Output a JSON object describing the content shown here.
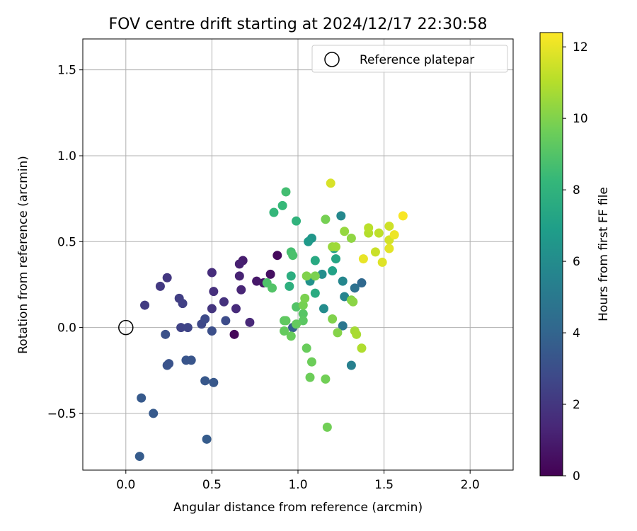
{
  "chart_data": {
    "type": "scatter",
    "title": "FOV centre drift starting at 2024/12/17 22:30:58",
    "xlabel": "Angular distance from reference (arcmin)",
    "ylabel": "Rotation from reference (arcmin)",
    "xlim": [
      -0.25,
      2.25
    ],
    "ylim": [
      -0.83,
      1.68
    ],
    "xticks": [
      0.0,
      0.5,
      1.0,
      1.5,
      2.0
    ],
    "xtick_labels": [
      "0.0",
      "0.5",
      "1.0",
      "1.5",
      "2.0"
    ],
    "yticks": [
      -0.5,
      0.0,
      0.5,
      1.0,
      1.5
    ],
    "ytick_labels": [
      "−0.5",
      "0.0",
      "0.5",
      "1.0",
      "1.5"
    ],
    "grid": true,
    "legend": {
      "position": "upper right",
      "entries": [
        {
          "label": "Reference platepar",
          "marker": "open-circle",
          "x": 0.0,
          "y": 0.0
        }
      ]
    },
    "colorbar": {
      "label": "Hours from first FF file",
      "colormap": "viridis",
      "range": [
        0,
        12.4
      ],
      "ticks": [
        0,
        2,
        4,
        6,
        8,
        10,
        12
      ],
      "tick_labels": [
        "0",
        "2",
        "4",
        "6",
        "8",
        "10",
        "12"
      ]
    },
    "colormap_stops": [
      "#440154",
      "#482878",
      "#3e4989",
      "#31688e",
      "#26828e",
      "#1f9e89",
      "#35b779",
      "#6ece58",
      "#b5de2b",
      "#fde725"
    ],
    "points": [
      {
        "x": 0.97,
        "y": 0.0,
        "c": 0.1
      },
      {
        "x": 0.63,
        "y": -0.04,
        "c": 0.2
      },
      {
        "x": 0.88,
        "y": 0.42,
        "c": 0.3
      },
      {
        "x": 0.84,
        "y": 0.31,
        "c": 0.5
      },
      {
        "x": 0.8,
        "y": 0.26,
        "c": 0.7
      },
      {
        "x": 0.76,
        "y": 0.27,
        "c": 0.8
      },
      {
        "x": 0.68,
        "y": 0.39,
        "c": 1.0
      },
      {
        "x": 0.66,
        "y": 0.37,
        "c": 1.1
      },
      {
        "x": 0.66,
        "y": 0.3,
        "c": 1.2
      },
      {
        "x": 0.67,
        "y": 0.22,
        "c": 1.3
      },
      {
        "x": 0.72,
        "y": 0.03,
        "c": 1.4
      },
      {
        "x": 0.64,
        "y": 0.11,
        "c": 1.5
      },
      {
        "x": 0.5,
        "y": 0.32,
        "c": 1.6
      },
      {
        "x": 0.51,
        "y": 0.21,
        "c": 1.7
      },
      {
        "x": 0.57,
        "y": 0.15,
        "c": 1.8
      },
      {
        "x": 0.5,
        "y": 0.11,
        "c": 1.9
      },
      {
        "x": 0.24,
        "y": 0.29,
        "c": 2.0
      },
      {
        "x": 0.2,
        "y": 0.24,
        "c": 2.1
      },
      {
        "x": 0.11,
        "y": 0.13,
        "c": 2.2
      },
      {
        "x": 0.31,
        "y": 0.17,
        "c": 2.3
      },
      {
        "x": 0.33,
        "y": 0.14,
        "c": 2.4
      },
      {
        "x": 0.32,
        "y": 0.0,
        "c": 2.5
      },
      {
        "x": 0.36,
        "y": 0.0,
        "c": 2.6
      },
      {
        "x": 0.44,
        "y": 0.02,
        "c": 2.7
      },
      {
        "x": 0.46,
        "y": 0.05,
        "c": 2.8
      },
      {
        "x": 0.58,
        "y": 0.04,
        "c": 2.9
      },
      {
        "x": 0.5,
        "y": -0.02,
        "c": 3.0
      },
      {
        "x": 0.23,
        "y": -0.04,
        "c": 3.1
      },
      {
        "x": 0.24,
        "y": -0.22,
        "c": 3.2
      },
      {
        "x": 0.25,
        "y": -0.21,
        "c": 3.2
      },
      {
        "x": 0.35,
        "y": -0.19,
        "c": 3.3
      },
      {
        "x": 0.38,
        "y": -0.19,
        "c": 3.3
      },
      {
        "x": 0.46,
        "y": -0.31,
        "c": 3.4
      },
      {
        "x": 0.51,
        "y": -0.32,
        "c": 3.4
      },
      {
        "x": 0.09,
        "y": -0.41,
        "c": 3.5
      },
      {
        "x": 0.16,
        "y": -0.5,
        "c": 3.5
      },
      {
        "x": 0.08,
        "y": -0.75,
        "c": 3.6
      },
      {
        "x": 0.47,
        "y": -0.65,
        "c": 3.6
      },
      {
        "x": 0.97,
        "y": 0.0,
        "c": 3.8
      },
      {
        "x": 1.37,
        "y": 0.26,
        "c": 4.2
      },
      {
        "x": 1.33,
        "y": 0.23,
        "c": 4.6
      },
      {
        "x": 1.26,
        "y": 0.01,
        "c": 4.9
      },
      {
        "x": 1.31,
        "y": -0.22,
        "c": 5.4
      },
      {
        "x": 1.27,
        "y": 0.18,
        "c": 5.6
      },
      {
        "x": 1.26,
        "y": 0.27,
        "c": 5.7
      },
      {
        "x": 1.25,
        "y": 0.65,
        "c": 5.8
      },
      {
        "x": 1.15,
        "y": 0.11,
        "c": 6.0
      },
      {
        "x": 1.14,
        "y": 0.31,
        "c": 6.1
      },
      {
        "x": 1.07,
        "y": 0.27,
        "c": 6.3
      },
      {
        "x": 1.08,
        "y": 0.52,
        "c": 6.5
      },
      {
        "x": 1.06,
        "y": 0.5,
        "c": 6.7
      },
      {
        "x": 1.21,
        "y": 0.46,
        "c": 6.9
      },
      {
        "x": 1.2,
        "y": 0.33,
        "c": 7.1
      },
      {
        "x": 1.22,
        "y": 0.4,
        "c": 7.3
      },
      {
        "x": 1.1,
        "y": 0.39,
        "c": 7.5
      },
      {
        "x": 1.1,
        "y": 0.2,
        "c": 7.6
      },
      {
        "x": 0.96,
        "y": 0.3,
        "c": 7.7
      },
      {
        "x": 0.95,
        "y": 0.24,
        "c": 7.8
      },
      {
        "x": 0.99,
        "y": 0.62,
        "c": 8.0
      },
      {
        "x": 0.86,
        "y": 0.67,
        "c": 8.2
      },
      {
        "x": 0.91,
        "y": 0.71,
        "c": 8.3
      },
      {
        "x": 0.93,
        "y": 0.79,
        "c": 8.6
      },
      {
        "x": 0.96,
        "y": 0.44,
        "c": 8.7
      },
      {
        "x": 0.97,
        "y": 0.42,
        "c": 8.8
      },
      {
        "x": 0.82,
        "y": 0.26,
        "c": 8.9
      },
      {
        "x": 0.85,
        "y": 0.23,
        "c": 9.0
      },
      {
        "x": 0.99,
        "y": 0.12,
        "c": 9.0
      },
      {
        "x": 1.03,
        "y": 0.08,
        "c": 9.1
      },
      {
        "x": 1.03,
        "y": 0.04,
        "c": 9.2
      },
      {
        "x": 0.92,
        "y": 0.04,
        "c": 9.2
      },
      {
        "x": 0.93,
        "y": 0.04,
        "c": 9.3
      },
      {
        "x": 0.99,
        "y": 0.02,
        "c": 9.4
      },
      {
        "x": 0.92,
        "y": -0.02,
        "c": 9.4
      },
      {
        "x": 0.96,
        "y": -0.05,
        "c": 9.5
      },
      {
        "x": 1.05,
        "y": -0.12,
        "c": 9.5
      },
      {
        "x": 1.08,
        "y": -0.2,
        "c": 9.6
      },
      {
        "x": 1.07,
        "y": -0.29,
        "c": 9.6
      },
      {
        "x": 1.16,
        "y": -0.3,
        "c": 9.7
      },
      {
        "x": 1.17,
        "y": -0.58,
        "c": 9.7
      },
      {
        "x": 1.16,
        "y": 0.63,
        "c": 9.8
      },
      {
        "x": 1.03,
        "y": 0.13,
        "c": 9.8
      },
      {
        "x": 1.04,
        "y": 0.17,
        "c": 9.9
      },
      {
        "x": 1.1,
        "y": 0.3,
        "c": 9.9
      },
      {
        "x": 1.05,
        "y": 0.3,
        "c": 10.0
      },
      {
        "x": 1.2,
        "y": 0.05,
        "c": 10.0
      },
      {
        "x": 1.23,
        "y": -0.03,
        "c": 10.1
      },
      {
        "x": 1.31,
        "y": 0.16,
        "c": 10.1
      },
      {
        "x": 1.32,
        "y": 0.15,
        "c": 10.2
      },
      {
        "x": 1.31,
        "y": 0.52,
        "c": 10.3
      },
      {
        "x": 1.27,
        "y": 0.56,
        "c": 10.4
      },
      {
        "x": 1.2,
        "y": 0.47,
        "c": 10.5
      },
      {
        "x": 1.22,
        "y": 0.47,
        "c": 10.6
      },
      {
        "x": 1.33,
        "y": -0.02,
        "c": 10.7
      },
      {
        "x": 1.34,
        "y": -0.04,
        "c": 10.8
      },
      {
        "x": 1.37,
        "y": -0.12,
        "c": 10.9
      },
      {
        "x": 1.41,
        "y": 0.55,
        "c": 11.0
      },
      {
        "x": 1.41,
        "y": 0.58,
        "c": 11.1
      },
      {
        "x": 1.47,
        "y": 0.55,
        "c": 11.2
      },
      {
        "x": 1.45,
        "y": 0.44,
        "c": 11.4
      },
      {
        "x": 1.53,
        "y": 0.59,
        "c": 11.5
      },
      {
        "x": 1.53,
        "y": 0.51,
        "c": 11.6
      },
      {
        "x": 1.19,
        "y": 0.84,
        "c": 11.7
      },
      {
        "x": 1.49,
        "y": 0.38,
        "c": 11.8
      },
      {
        "x": 1.53,
        "y": 0.46,
        "c": 11.9
      },
      {
        "x": 1.38,
        "y": 0.4,
        "c": 12.0
      },
      {
        "x": 1.56,
        "y": 0.54,
        "c": 12.1
      },
      {
        "x": 1.61,
        "y": 0.65,
        "c": 12.3
      }
    ]
  }
}
